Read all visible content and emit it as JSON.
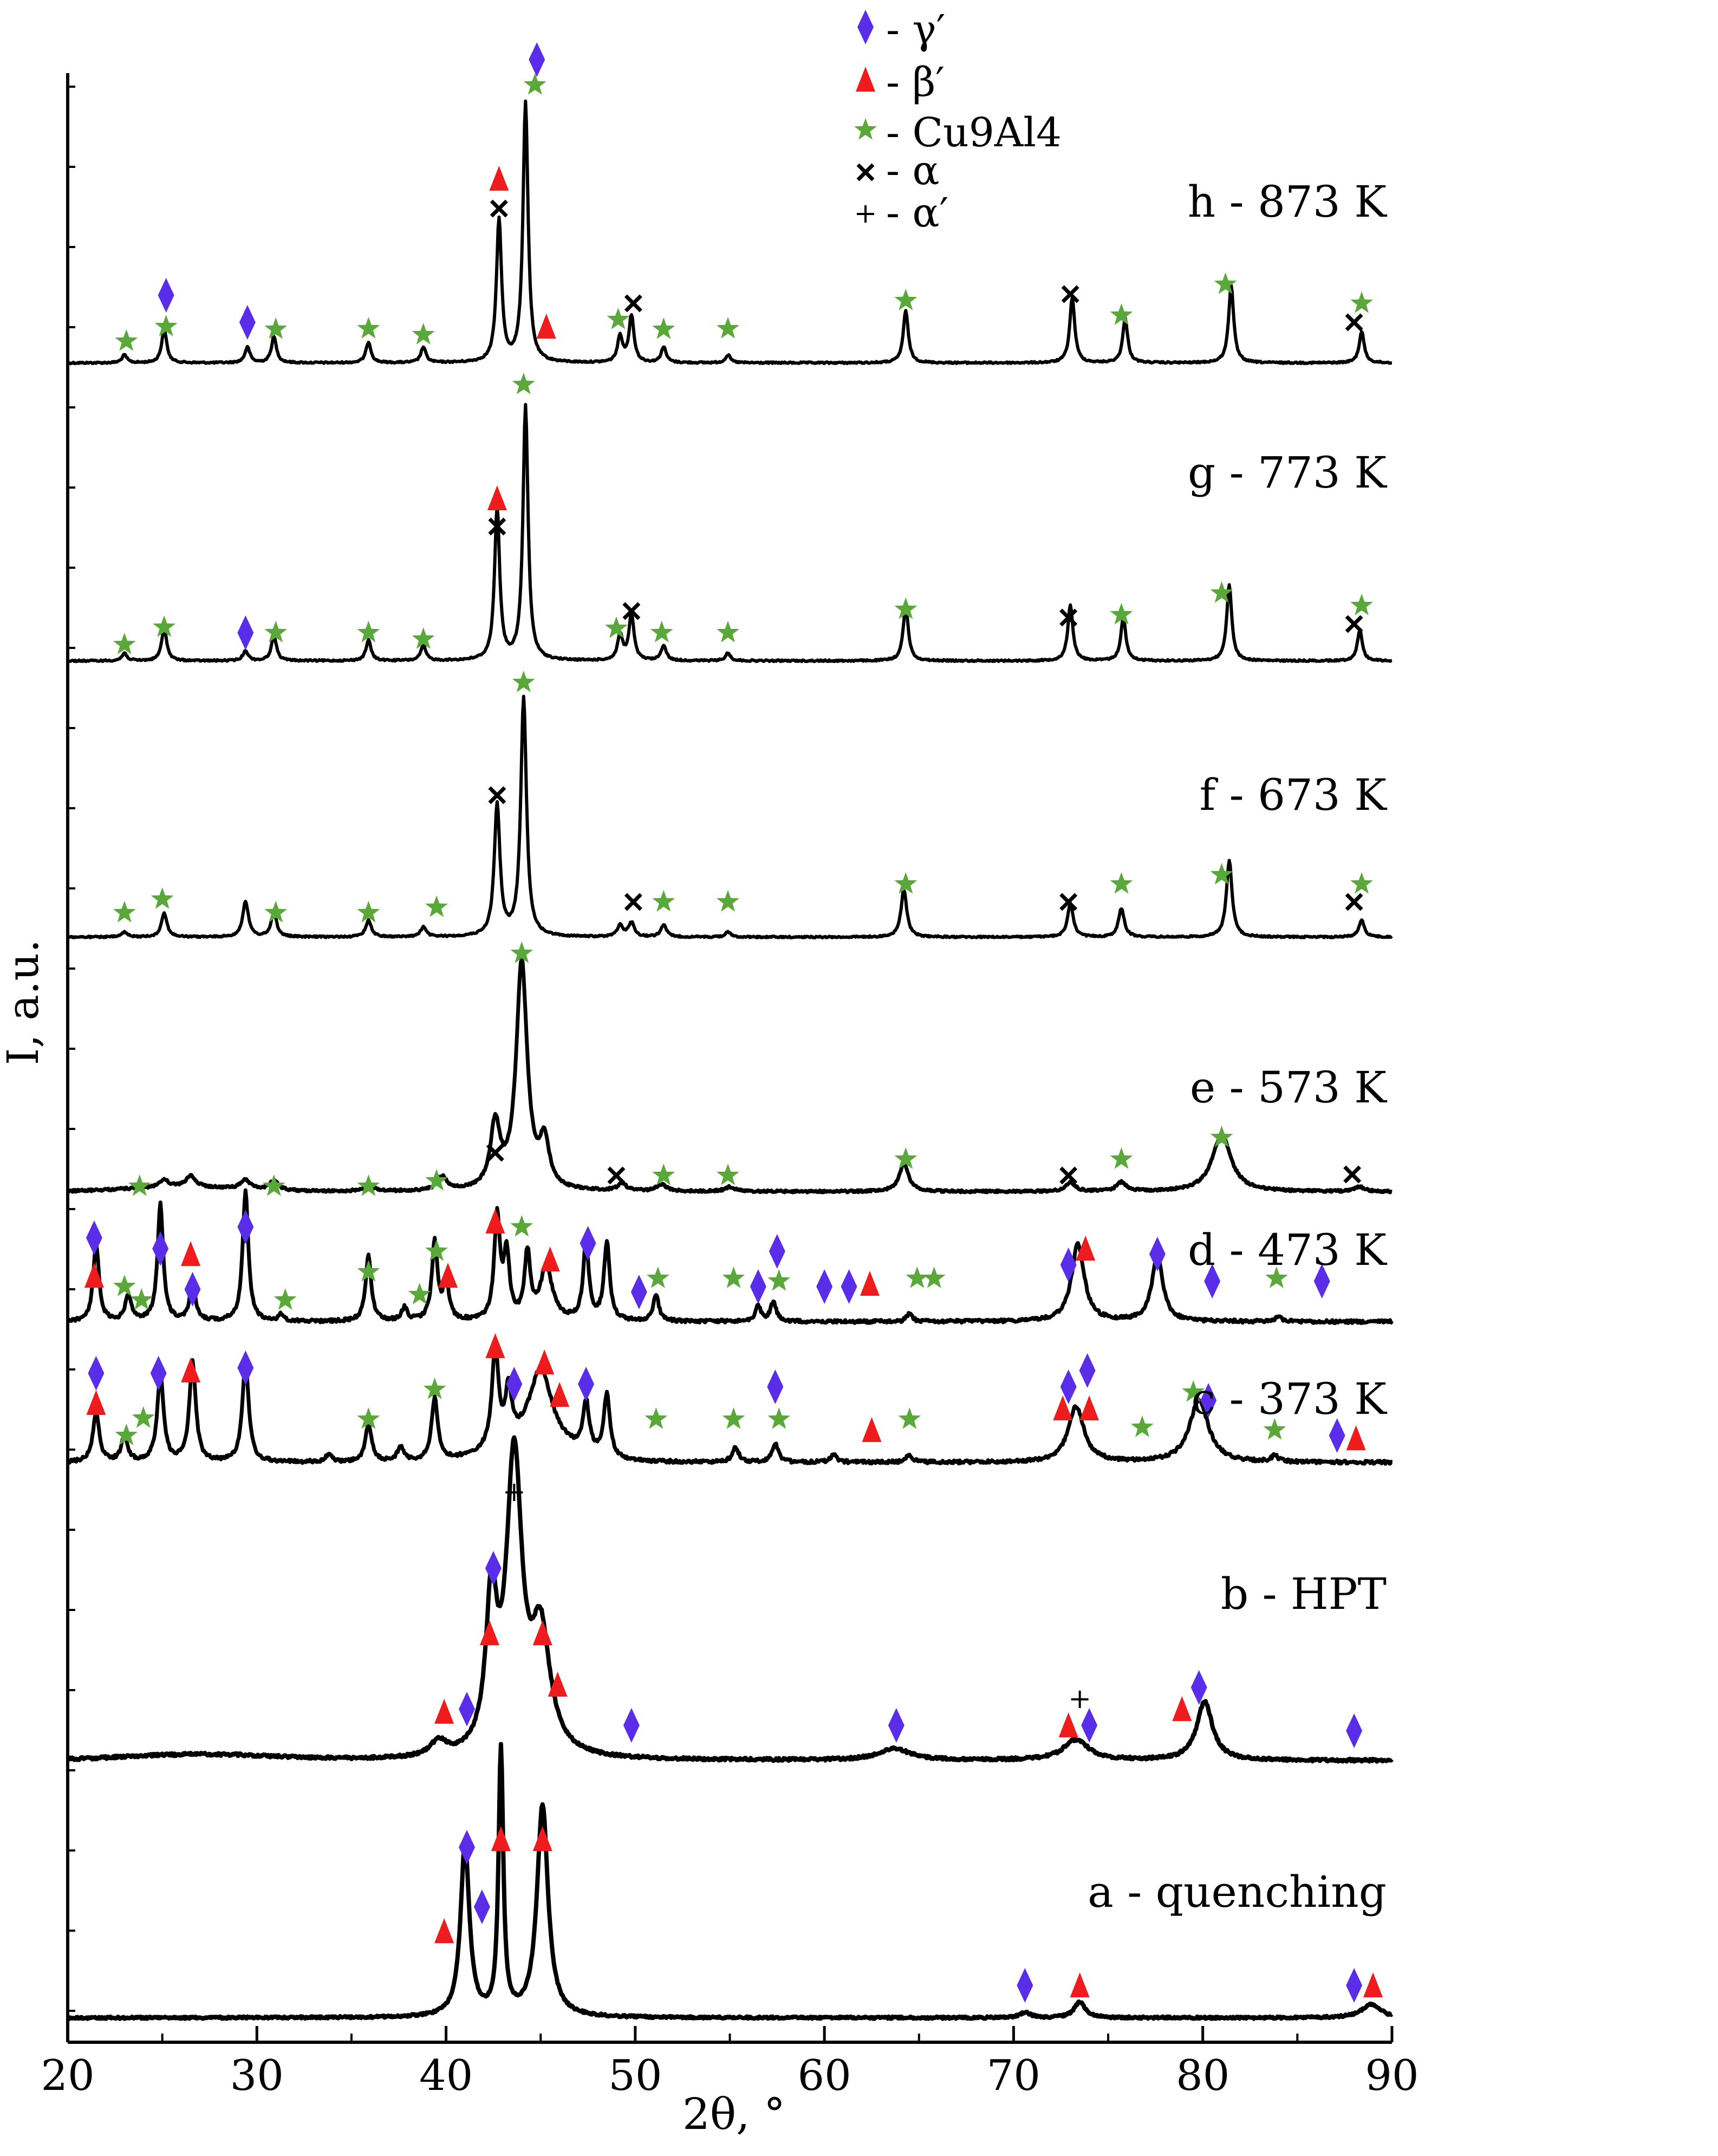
{
  "chart_data": {
    "type": "line",
    "title": "",
    "xlabel": "2θ, °",
    "ylabel": "I, a.u.",
    "xlim": [
      20,
      90
    ],
    "x_ticks": [
      20,
      30,
      40,
      50,
      60,
      70,
      80,
      90
    ],
    "legend": {
      "placement": "top-center",
      "entries": [
        {
          "symbol": "diamond",
          "color": "#5a2ee8",
          "label": "- γ′"
        },
        {
          "symbol": "triangle",
          "color": "#ee1c1c",
          "label": "- β′"
        },
        {
          "symbol": "star",
          "color": "#5aa83a",
          "label": "- Cu9Al4"
        },
        {
          "symbol": "cross",
          "color": "#000000",
          "label": "- α"
        },
        {
          "symbol": "plus",
          "color": "#000000",
          "label": "- α′"
        }
      ]
    },
    "series": [
      {
        "id": "h",
        "name": "h - 873 K",
        "peaks": [
          [
            23,
            0.03
          ],
          [
            25.1,
            0.13
          ],
          [
            29.5,
            0.06
          ],
          [
            30.9,
            0.1
          ],
          [
            35.9,
            0.08
          ],
          [
            38.8,
            0.06
          ],
          [
            42.8,
            0.55
          ],
          [
            44.2,
            1.0
          ],
          [
            49.2,
            0.1
          ],
          [
            49.8,
            0.18
          ],
          [
            51.5,
            0.06
          ],
          [
            54.9,
            0.03
          ],
          [
            64.3,
            0.2
          ],
          [
            73.1,
            0.25
          ],
          [
            75.9,
            0.17
          ],
          [
            81.5,
            0.3
          ],
          [
            88.4,
            0.12
          ]
        ]
      },
      {
        "id": "g",
        "name": "g - 773 K",
        "peaks": [
          [
            23,
            0.03
          ],
          [
            25.1,
            0.13
          ],
          [
            29.4,
            0.04
          ],
          [
            30.9,
            0.1
          ],
          [
            35.9,
            0.08
          ],
          [
            38.8,
            0.06
          ],
          [
            42.7,
            0.6
          ],
          [
            44.2,
            1.0
          ],
          [
            49.2,
            0.1
          ],
          [
            49.8,
            0.18
          ],
          [
            51.5,
            0.06
          ],
          [
            54.9,
            0.03
          ],
          [
            64.3,
            0.22
          ],
          [
            73.0,
            0.22
          ],
          [
            75.8,
            0.17
          ],
          [
            81.4,
            0.3
          ],
          [
            88.3,
            0.12
          ]
        ]
      },
      {
        "id": "f",
        "name": "f - 673 K",
        "peaks": [
          [
            23,
            0.02
          ],
          [
            25.1,
            0.1
          ],
          [
            29.4,
            0.15
          ],
          [
            30.9,
            0.1
          ],
          [
            35.9,
            0.07
          ],
          [
            38.8,
            0.04
          ],
          [
            42.7,
            0.55
          ],
          [
            44.1,
            1.0
          ],
          [
            49.2,
            0.05
          ],
          [
            49.8,
            0.06
          ],
          [
            51.5,
            0.05
          ],
          [
            54.9,
            0.02
          ],
          [
            64.2,
            0.2
          ],
          [
            73.0,
            0.14
          ],
          [
            75.7,
            0.12
          ],
          [
            81.4,
            0.32
          ],
          [
            88.4,
            0.07
          ]
        ]
      },
      {
        "id": "e",
        "name": "e - 573 K",
        "peaks": [
          [
            25.1,
            0.03
          ],
          [
            26.5,
            0.05
          ],
          [
            29.4,
            0.04
          ],
          [
            30.9,
            0.04
          ],
          [
            35.9,
            0.03
          ],
          [
            39.8,
            0.06
          ],
          [
            42.6,
            0.28
          ],
          [
            44.0,
            1.0
          ],
          [
            45.2,
            0.2
          ],
          [
            49.3,
            0.03
          ],
          [
            51.4,
            0.03
          ],
          [
            55,
            0.02
          ],
          [
            64.2,
            0.12
          ],
          [
            73.0,
            0.04
          ],
          [
            75.7,
            0.04
          ],
          [
            81.0,
            0.25
          ],
          [
            88.3,
            0.02
          ]
        ]
      },
      {
        "id": "d",
        "name": "d - 473 K",
        "peaks": [
          [
            21.5,
            0.6
          ],
          [
            23.2,
            0.2
          ],
          [
            24.9,
            0.9
          ],
          [
            26.6,
            0.3
          ],
          [
            29.4,
            1.0
          ],
          [
            31.3,
            0.05
          ],
          [
            35.9,
            0.5
          ],
          [
            37.8,
            0.1
          ],
          [
            39.4,
            0.6
          ],
          [
            40.0,
            0.3
          ],
          [
            42.7,
            0.8
          ],
          [
            43.2,
            0.5
          ],
          [
            44.3,
            0.5
          ],
          [
            45.3,
            0.4
          ],
          [
            47.4,
            0.6
          ],
          [
            48.5,
            0.6
          ],
          [
            51.1,
            0.2
          ],
          [
            56.5,
            0.12
          ],
          [
            57.3,
            0.15
          ],
          [
            64.5,
            0.06
          ],
          [
            73.4,
            0.6
          ],
          [
            77.6,
            0.5
          ],
          [
            84,
            0.04
          ]
        ]
      },
      {
        "id": "c",
        "name": "c - 373 K",
        "peaks": [
          [
            21.5,
            0.4
          ],
          [
            23.0,
            0.2
          ],
          [
            24.9,
            0.7
          ],
          [
            26.6,
            0.8
          ],
          [
            29.4,
            0.8
          ],
          [
            33.8,
            0.06
          ],
          [
            35.9,
            0.3
          ],
          [
            37.6,
            0.12
          ],
          [
            39.4,
            0.5
          ],
          [
            42.6,
            0.8
          ],
          [
            43.3,
            0.4
          ],
          [
            45.0,
            0.6
          ],
          [
            47.4,
            0.4
          ],
          [
            48.5,
            0.5
          ],
          [
            55.3,
            0.12
          ],
          [
            57.4,
            0.15
          ],
          [
            60.5,
            0.06
          ],
          [
            64.5,
            0.06
          ],
          [
            73.3,
            0.45
          ],
          [
            79.8,
            0.5
          ],
          [
            83.8,
            0.05
          ]
        ]
      },
      {
        "id": "b",
        "name": "b - HPT",
        "peaks": [
          [
            39.6,
            0.05
          ],
          [
            42.4,
            0.5
          ],
          [
            43.6,
            1.0
          ],
          [
            45.0,
            0.4
          ],
          [
            63.7,
            0.04
          ],
          [
            73.3,
            0.07
          ],
          [
            80.1,
            0.2
          ]
        ]
      },
      {
        "id": "a",
        "name": "a - quenching",
        "peaks": [
          [
            41.0,
            0.65
          ],
          [
            42.9,
            1.0
          ],
          [
            45.1,
            0.8
          ],
          [
            70.6,
            0.02
          ],
          [
            73.5,
            0.06
          ],
          [
            88.9,
            0.05
          ]
        ]
      }
    ]
  }
}
